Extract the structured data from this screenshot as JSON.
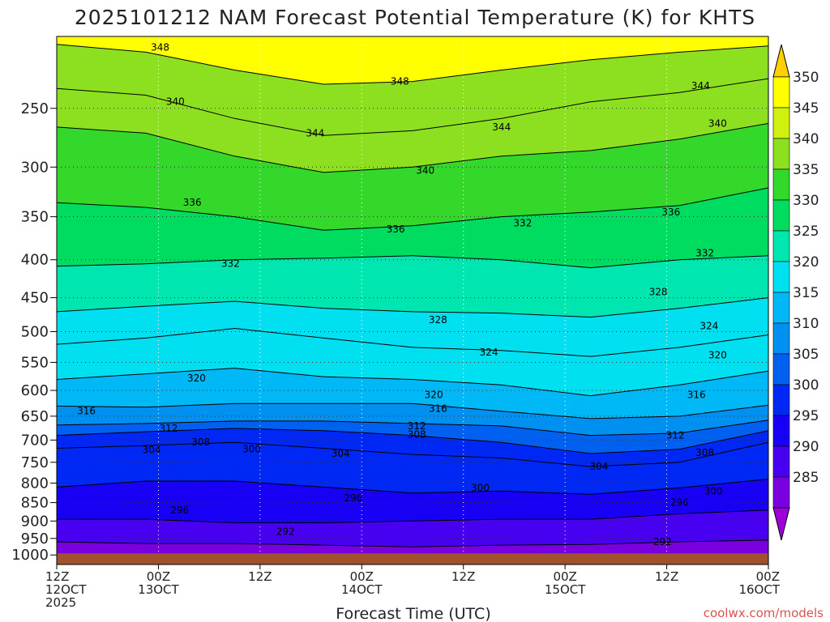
{
  "chart_data": {
    "type": "heatmap",
    "title": "2025101212 NAM Forecast Potential Temperature (K) for KHTS",
    "xlabel": "Forecast Time (UTC)",
    "ylabel": "",
    "x_ticks": [
      {
        "line1": "12Z",
        "line2": "12OCT",
        "line3": "2025"
      },
      {
        "line1": "00Z",
        "line2": "13OCT",
        "line3": ""
      },
      {
        "line1": "12Z",
        "line2": "",
        "line3": ""
      },
      {
        "line1": "00Z",
        "line2": "14OCT",
        "line3": ""
      },
      {
        "line1": "12Z",
        "line2": "",
        "line3": ""
      },
      {
        "line1": "00Z",
        "line2": "15OCT",
        "line3": ""
      },
      {
        "line1": "12Z",
        "line2": "",
        "line3": ""
      },
      {
        "line1": "00Z",
        "line2": "16OCT",
        "line3": ""
      }
    ],
    "x_hours": [
      0,
      12,
      24,
      36,
      48,
      60,
      72,
      84
    ],
    "xlim": [
      0,
      84
    ],
    "y_ticks": [
      "250",
      "300",
      "350",
      "400",
      "450",
      "500",
      "550",
      "600",
      "650",
      "700",
      "750",
      "800",
      "850",
      "900",
      "950",
      "1000"
    ],
    "ylim_hPa": [
      200,
      1030
    ],
    "y_scale": "log",
    "surface_pressure_hPa": 995,
    "colorbar": {
      "ticks": [
        "285",
        "290",
        "295",
        "300",
        "305",
        "310",
        "315",
        "320",
        "325",
        "330",
        "335",
        "340",
        "345",
        "350"
      ],
      "levels": [
        280,
        285,
        290,
        295,
        300,
        305,
        310,
        315,
        320,
        325,
        330,
        335,
        340,
        345,
        350,
        355
      ],
      "colors": [
        "#a000d8",
        "#7a00e0",
        "#4800f0",
        "#1800f5",
        "#0028f5",
        "#0060f0",
        "#0090f0",
        "#00b8f5",
        "#00e0f0",
        "#00e6b0",
        "#00dc60",
        "#33d82a",
        "#8ce020",
        "#d0f010",
        "#ffff00",
        "#ffd000"
      ]
    },
    "series": [
      {
        "level": 292,
        "p": [
          960,
          965,
          965,
          970,
          975,
          970,
          968,
          960,
          955
        ]
      },
      {
        "level": 296,
        "p": [
          895,
          895,
          905,
          905,
          900,
          895,
          895,
          880,
          870
        ]
      },
      {
        "level": 300,
        "p": [
          810,
          795,
          795,
          810,
          825,
          820,
          828,
          812,
          790
        ]
      },
      {
        "level": 304,
        "p": [
          718,
          712,
          705,
          718,
          732,
          740,
          760,
          750,
          705
        ]
      },
      {
        "level": 308,
        "p": [
          690,
          682,
          675,
          680,
          690,
          705,
          730,
          720,
          680
        ]
      },
      {
        "level": 312,
        "p": [
          668,
          665,
          660,
          660,
          665,
          670,
          690,
          685,
          658
        ]
      },
      {
        "level": 316,
        "p": [
          630,
          632,
          625,
          625,
          625,
          640,
          655,
          650,
          628
        ]
      },
      {
        "level": 320,
        "p": [
          580,
          570,
          560,
          575,
          580,
          590,
          610,
          590,
          565
        ]
      },
      {
        "level": 324,
        "p": [
          520,
          510,
          495,
          510,
          525,
          530,
          540,
          525,
          505
        ]
      },
      {
        "level": 328,
        "p": [
          470,
          462,
          455,
          465,
          470,
          472,
          478,
          465,
          450
        ]
      },
      {
        "level": 332,
        "p": [
          408,
          405,
          400,
          398,
          395,
          400,
          410,
          400,
          395
        ]
      },
      {
        "level": 336,
        "p": [
          335,
          340,
          350,
          365,
          360,
          350,
          345,
          338,
          320
        ]
      },
      {
        "level": 340,
        "p": [
          265,
          270,
          290,
          305,
          300,
          290,
          285,
          275,
          262
        ]
      },
      {
        "level": 344,
        "p": [
          235,
          240,
          258,
          272,
          268,
          258,
          245,
          238,
          228
        ]
      },
      {
        "level": 348,
        "p": [
          205,
          210,
          222,
          232,
          230,
          222,
          215,
          210,
          206
        ]
      }
    ],
    "annotations": [
      {
        "text": "348",
        "hour": 12.2,
        "p": 207
      },
      {
        "text": "348",
        "hour": 40.5,
        "p": 230
      },
      {
        "text": "344",
        "hour": 76.0,
        "p": 233
      },
      {
        "text": "340",
        "hour": 14.0,
        "p": 245
      },
      {
        "text": "344",
        "hour": 30.5,
        "p": 270
      },
      {
        "text": "344",
        "hour": 52.5,
        "p": 265
      },
      {
        "text": "340",
        "hour": 78.0,
        "p": 262
      },
      {
        "text": "340",
        "hour": 43.5,
        "p": 303
      },
      {
        "text": "336",
        "hour": 16.0,
        "p": 335
      },
      {
        "text": "336",
        "hour": 72.5,
        "p": 345
      },
      {
        "text": "336",
        "hour": 40.0,
        "p": 364
      },
      {
        "text": "332",
        "hour": 55.0,
        "p": 357
      },
      {
        "text": "332",
        "hour": 76.5,
        "p": 392
      },
      {
        "text": "332",
        "hour": 20.5,
        "p": 405
      },
      {
        "text": "328",
        "hour": 71.0,
        "p": 442
      },
      {
        "text": "328",
        "hour": 45.0,
        "p": 482
      },
      {
        "text": "324",
        "hour": 77.0,
        "p": 491
      },
      {
        "text": "324",
        "hour": 51.0,
        "p": 533
      },
      {
        "text": "320",
        "hour": 78.0,
        "p": 538
      },
      {
        "text": "320",
        "hour": 16.5,
        "p": 578
      },
      {
        "text": "320",
        "hour": 44.5,
        "p": 608
      },
      {
        "text": "316",
        "hour": 75.5,
        "p": 608
      },
      {
        "text": "316",
        "hour": 3.5,
        "p": 640
      },
      {
        "text": "316",
        "hour": 45.0,
        "p": 635
      },
      {
        "text": "312",
        "hour": 42.5,
        "p": 670
      },
      {
        "text": "312",
        "hour": 13.2,
        "p": 675
      },
      {
        "text": "308",
        "hour": 42.5,
        "p": 688
      },
      {
        "text": "312",
        "hour": 73.0,
        "p": 690
      },
      {
        "text": "308",
        "hour": 17.0,
        "p": 705
      },
      {
        "text": "304",
        "hour": 11.2,
        "p": 722
      },
      {
        "text": "300",
        "hour": 23.0,
        "p": 720
      },
      {
        "text": "304",
        "hour": 33.5,
        "p": 730
      },
      {
        "text": "308",
        "hour": 76.5,
        "p": 728
      },
      {
        "text": "304",
        "hour": 64.0,
        "p": 760
      },
      {
        "text": "300",
        "hour": 50.0,
        "p": 812
      },
      {
        "text": "300",
        "hour": 77.5,
        "p": 820
      },
      {
        "text": "296",
        "hour": 35.0,
        "p": 838
      },
      {
        "text": "296",
        "hour": 14.5,
        "p": 870
      },
      {
        "text": "296",
        "hour": 73.5,
        "p": 850
      },
      {
        "text": "292",
        "hour": 27.0,
        "p": 930
      },
      {
        "text": "292",
        "hour": 71.5,
        "p": 960
      }
    ]
  },
  "footer": {
    "credit": "coolwx.com/models"
  },
  "colors": {
    "ground": "#a0522d",
    "grid": "#333333",
    "contour": "#000000"
  }
}
